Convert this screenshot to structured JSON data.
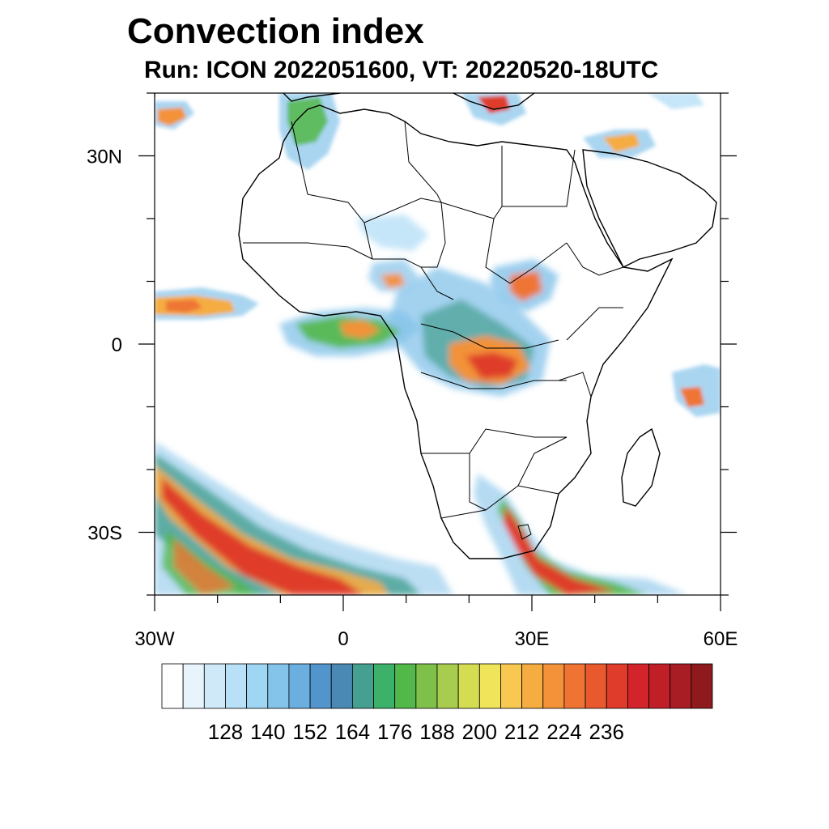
{
  "header": {
    "title": "Convection index",
    "subtitle": "Run: ICON 2022051600,  VT: 20220520-18UTC"
  },
  "map": {
    "lon_range": [
      -30,
      60
    ],
    "lat_range": [
      -40,
      40
    ],
    "x_ticks": [
      {
        "value": -30,
        "label": "30W"
      },
      {
        "value": 0,
        "label": "0"
      },
      {
        "value": 30,
        "label": "30E"
      },
      {
        "value": 60,
        "label": "60E"
      }
    ],
    "y_ticks": [
      {
        "value": 30,
        "label": "30N"
      },
      {
        "value": 0,
        "label": "0"
      },
      {
        "value": -30,
        "label": "30S"
      }
    ]
  },
  "colorbar": {
    "colors": [
      "#ffffff",
      "#e8f4fb",
      "#cfe9f8",
      "#b8e0f6",
      "#9fd6f3",
      "#84c3ea",
      "#6aafe0",
      "#5295cc",
      "#4a89b4",
      "#46a091",
      "#3db06a",
      "#52b84a",
      "#7fc04a",
      "#a8cc4e",
      "#d4dc52",
      "#f0e45a",
      "#f8c850",
      "#f5ac40",
      "#f39238",
      "#ef7434",
      "#e85a2e",
      "#df3c2c",
      "#d3232b",
      "#c01f28",
      "#a81c24",
      "#8e1a1e"
    ],
    "labels": [
      "128",
      "140",
      "152",
      "164",
      "176",
      "188",
      "200",
      "212",
      "224",
      "236"
    ]
  }
}
